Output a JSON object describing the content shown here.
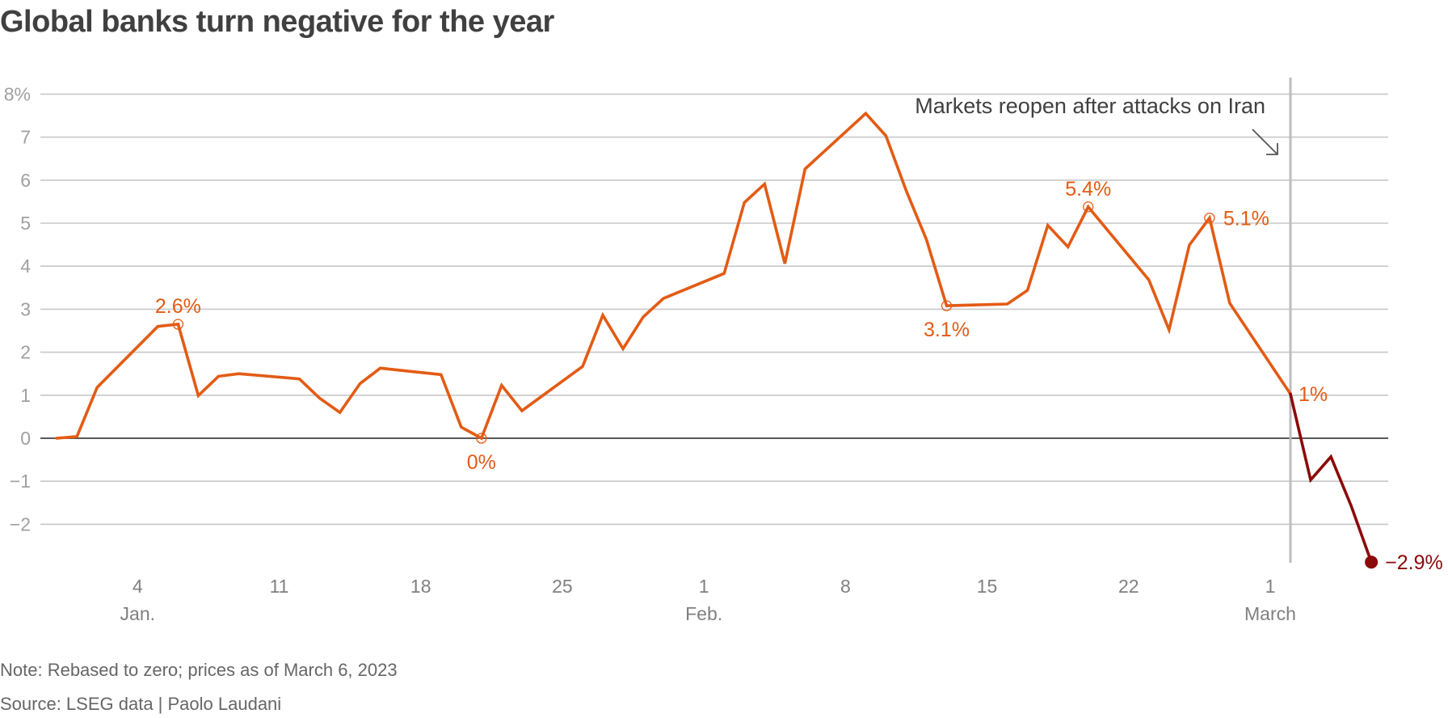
{
  "title": "Global banks turn negative for the year",
  "footer": {
    "note": "Note: Rebased to zero; prices as of March 6, 2023",
    "source": "Source: LSEG data | Paolo Laudani"
  },
  "colors": {
    "line_main": "#e35b14",
    "line_after_event": "#8b0a0a",
    "grid": "#c8c8c8",
    "zero_line": "#404040",
    "event_line": "#bdbdbd",
    "tick_text": "#a0a0a0",
    "axis_text": "#808080",
    "annotation_text": "#404040"
  },
  "chart_data": {
    "type": "line",
    "title": "Global banks turn negative for the year",
    "xlabel": "",
    "ylabel": "",
    "x_unit": "day of year (Jan 1 = 1, Feb 1 = 32, Mar 1 = 60)",
    "ylim": [
      -2.9,
      8
    ],
    "yticks": [
      8,
      7,
      6,
      5,
      4,
      3,
      2,
      1,
      0,
      -1,
      -2
    ],
    "ytick_labels": [
      "8%",
      "7",
      "6",
      "5",
      "4",
      "3",
      "2",
      "1",
      "0",
      "−1",
      "−2"
    ],
    "xlim": [
      -0.5,
      65
    ],
    "xticks": [
      {
        "day": 4,
        "label": "4",
        "sublabel": "Jan."
      },
      {
        "day": 11,
        "label": "11",
        "sublabel": ""
      },
      {
        "day": 18,
        "label": "18",
        "sublabel": ""
      },
      {
        "day": 25,
        "label": "25",
        "sublabel": ""
      },
      {
        "day": 32,
        "label": "1",
        "sublabel": "Feb."
      },
      {
        "day": 39,
        "label": "8",
        "sublabel": ""
      },
      {
        "day": 46,
        "label": "15",
        "sublabel": ""
      },
      {
        "day": 53,
        "label": "22",
        "sublabel": ""
      },
      {
        "day": 60,
        "label": "1",
        "sublabel": "March"
      }
    ],
    "grid": true,
    "series": [
      {
        "name": "Global banks",
        "x": [
          0,
          1,
          2,
          5,
          6,
          7,
          8,
          9,
          12,
          13,
          14,
          15,
          16,
          19,
          20,
          21,
          22,
          23,
          26,
          27,
          28,
          29,
          30,
          33,
          34,
          35,
          36,
          37,
          40,
          41,
          42,
          43,
          44,
          47,
          48,
          49,
          50,
          51,
          54,
          55,
          56,
          57,
          58,
          61,
          62,
          63,
          64,
          65
        ],
        "values": [
          0.0,
          0.04,
          1.18,
          2.6,
          2.65,
          0.99,
          1.44,
          1.5,
          1.38,
          0.93,
          0.6,
          1.27,
          1.63,
          1.48,
          0.26,
          0.0,
          1.23,
          0.64,
          1.67,
          2.86,
          2.08,
          2.82,
          3.25,
          3.83,
          5.48,
          5.91,
          4.06,
          6.26,
          7.55,
          7.03,
          5.76,
          4.62,
          3.08,
          3.12,
          3.44,
          4.95,
          4.45,
          5.38,
          3.68,
          2.52,
          4.49,
          5.12,
          3.14,
          1.03,
          -0.97,
          -0.43,
          -1.57,
          -2.88
        ]
      }
    ],
    "event": {
      "day": 61,
      "label": "Markets reopen after attacks on Iran",
      "note": "line is drawn darker red after this day"
    },
    "annotations": [
      {
        "day": 6,
        "value": 2.65,
        "label": "2.6%",
        "position": "above",
        "marker": "open-circle"
      },
      {
        "day": 21,
        "value": 0.0,
        "label": "0%",
        "position": "below",
        "marker": "open-circle"
      },
      {
        "day": 44,
        "value": 3.08,
        "label": "3.1%",
        "position": "below",
        "marker": "open-circle"
      },
      {
        "day": 51,
        "value": 5.38,
        "label": "5.4%",
        "position": "above",
        "marker": "open-circle"
      },
      {
        "day": 57,
        "value": 5.12,
        "label": "5.1%",
        "position": "right",
        "marker": "open-circle"
      },
      {
        "day": 61,
        "value": 1.03,
        "label": "1%",
        "position": "right",
        "marker": "none"
      },
      {
        "day": 65,
        "value": -2.88,
        "label": "−2.9%",
        "position": "right",
        "marker": "filled-circle"
      }
    ],
    "legend": "none"
  }
}
